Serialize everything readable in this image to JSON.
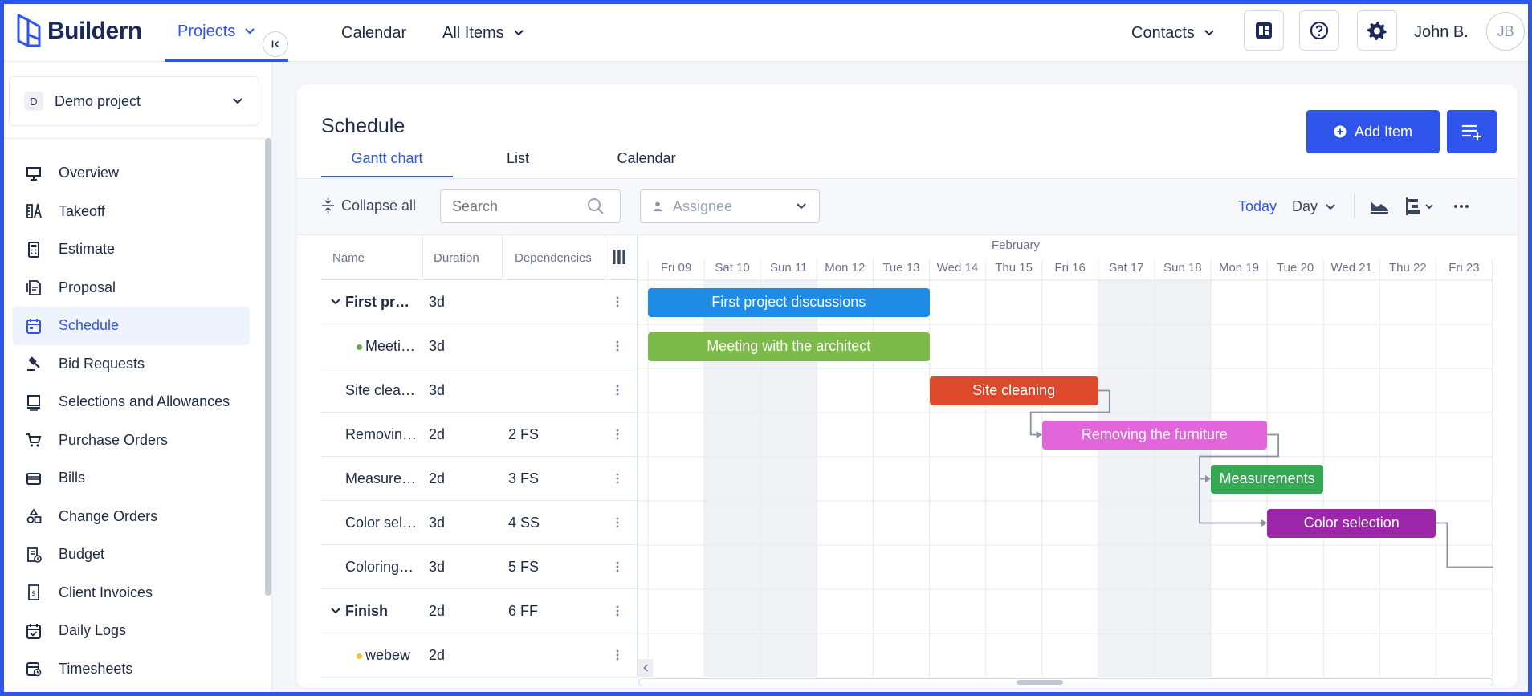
{
  "brand": {
    "name": "Buildern"
  },
  "nav": {
    "items": [
      {
        "label": "Projects",
        "active": true,
        "dropdown": true
      },
      {
        "label": "Calendar",
        "active": false,
        "dropdown": false
      },
      {
        "label": "All Items",
        "active": false,
        "dropdown": true
      }
    ],
    "contacts_label": "Contacts",
    "user_name": "John B.",
    "user_initials": "JB"
  },
  "sidebar": {
    "project": {
      "badge": "D",
      "name": "Demo project"
    },
    "items": [
      {
        "label": "Overview",
        "icon": "presentation-icon"
      },
      {
        "label": "Takeoff",
        "icon": "takeoff-icon"
      },
      {
        "label": "Estimate",
        "icon": "calculator-icon"
      },
      {
        "label": "Proposal",
        "icon": "proposal-icon"
      },
      {
        "label": "Schedule",
        "icon": "calendar-icon",
        "active": true
      },
      {
        "label": "Bid Requests",
        "icon": "gavel-icon"
      },
      {
        "label": "Selections and Allowances",
        "icon": "selections-icon"
      },
      {
        "label": "Purchase Orders",
        "icon": "cart-icon"
      },
      {
        "label": "Bills",
        "icon": "bills-icon"
      },
      {
        "label": "Change Orders",
        "icon": "shapes-icon"
      },
      {
        "label": "Budget",
        "icon": "budget-icon"
      },
      {
        "label": "Client Invoices",
        "icon": "invoice-icon"
      },
      {
        "label": "Daily Logs",
        "icon": "daily-log-icon"
      },
      {
        "label": "Timesheets",
        "icon": "timesheet-icon"
      }
    ]
  },
  "main": {
    "title": "Schedule",
    "tabs": [
      {
        "label": "Gantt chart",
        "active": true
      },
      {
        "label": "List",
        "active": false
      },
      {
        "label": "Calendar",
        "active": false
      }
    ],
    "add_item_label": "Add Item",
    "toolbar": {
      "collapse_all": "Collapse all",
      "search_placeholder": "Search",
      "assignee_placeholder": "Assignee",
      "today": "Today",
      "zoom": "Day"
    },
    "columns": {
      "name": "Name",
      "duration": "Duration",
      "dependencies": "Dependencies"
    },
    "rows": [
      {
        "name": "First proj…",
        "duration": "3d",
        "deps": "",
        "group": true
      },
      {
        "name": "Meeti…",
        "duration": "3d",
        "deps": "",
        "dot": "#6aa84f"
      },
      {
        "name": "Site clea…",
        "duration": "3d",
        "deps": ""
      },
      {
        "name": "Removin…",
        "duration": "2d",
        "deps": "2 FS"
      },
      {
        "name": "Measure…",
        "duration": "2d",
        "deps": "3 FS"
      },
      {
        "name": "Color sel…",
        "duration": "3d",
        "deps": "4 SS"
      },
      {
        "name": "Coloring …",
        "duration": "3d",
        "deps": "5 FS"
      },
      {
        "name": "Finish",
        "duration": "2d",
        "deps": "6 FF",
        "group": true
      },
      {
        "name": "webew",
        "duration": "2d",
        "deps": "",
        "dot": "#f1c232"
      }
    ],
    "gantt": {
      "month": "February",
      "days": [
        "Fri 09",
        "Sat 10",
        "Sun 11",
        "Mon 12",
        "Tue 13",
        "Wed 14",
        "Thu 15",
        "Fri 16",
        "Sat 17",
        "Sun 18",
        "Mon 19",
        "Tue 20",
        "Wed 21",
        "Thu 22",
        "Fri 23"
      ],
      "weekend_days": [
        1,
        2,
        8,
        9
      ],
      "tasks": [
        {
          "label": "First project discussions",
          "row": 0,
          "start_day": 0,
          "days": 5,
          "color": "#1e8be6"
        },
        {
          "label": "Meeting with the architect",
          "row": 1,
          "start_day": 0,
          "days": 5,
          "color": "#7cbb4a"
        },
        {
          "label": "Site cleaning",
          "row": 2,
          "start_day": 5,
          "days": 3,
          "color": "#dd4a2b"
        },
        {
          "label": "Removing the furniture",
          "row": 3,
          "start_day": 7,
          "days": 4,
          "color": "#e266da"
        },
        {
          "label": "Measurements",
          "row": 4,
          "start_day": 10,
          "days": 2,
          "color": "#34a853"
        },
        {
          "label": "Color selection",
          "row": 5,
          "start_day": 11,
          "days": 3,
          "color": "#9c27a8"
        }
      ]
    }
  }
}
